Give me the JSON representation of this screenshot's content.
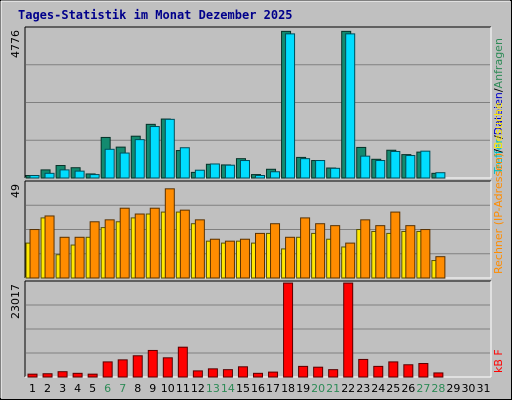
{
  "title": "Tages-Statistik im Monat Dezember 2025",
  "colors": {
    "background": "#C0C0C0",
    "title": "#00008B",
    "weekend_label": "#2E8B57",
    "weekday_label": "#000000",
    "hits": "#00DDFF",
    "files": "#138A6F",
    "sites": "#FF8C00",
    "visits": "#FFE800",
    "kbytes": "#FF0000"
  },
  "chart_data": [
    {
      "type": "bar",
      "panel": "hits-files",
      "ymax_label": "4776",
      "ylim": [
        0,
        4776
      ],
      "right_labels": [
        {
          "text": "Treffer",
          "color": "#00BFBF"
        },
        {
          "text": "/",
          "color": "#000000"
        },
        {
          "text": "Dateien",
          "color": "#0000CC"
        },
        {
          "text": "/",
          "color": "#000000"
        },
        {
          "text": "Anfragen",
          "color": "#2E8B57"
        }
      ],
      "categories": [
        "1",
        "2",
        "3",
        "4",
        "5",
        "6",
        "7",
        "8",
        "9",
        "10",
        "11",
        "12",
        "13",
        "14",
        "15",
        "16",
        "17",
        "18",
        "19",
        "20",
        "21",
        "22",
        "23",
        "24",
        "25",
        "26",
        "27",
        "28",
        "29",
        "30",
        "31"
      ],
      "series": [
        {
          "key": "files",
          "values": [
            80,
            260,
            400,
            330,
            130,
            1300,
            990,
            1340,
            1720,
            1890,
            880,
            180,
            440,
            420,
            620,
            110,
            280,
            4700,
            660,
            560,
            320,
            4700,
            980,
            600,
            890,
            750,
            830,
            150,
            0,
            0,
            0
          ]
        },
        {
          "key": "hits",
          "values": [
            80,
            150,
            260,
            220,
            110,
            920,
            800,
            1230,
            1650,
            1880,
            970,
            250,
            450,
            410,
            560,
            80,
            200,
            4620,
            620,
            560,
            310,
            4620,
            700,
            560,
            850,
            720,
            860,
            170,
            0,
            0,
            0
          ]
        }
      ]
    },
    {
      "type": "bar",
      "panel": "sites-visits",
      "ymax_label": "49",
      "ylim": [
        0,
        49
      ],
      "right_labels": [
        {
          "text": "Rechner (IP-Adressen)",
          "color": "#FF8C00"
        },
        {
          "text": "/",
          "color": "#000000"
        },
        {
          "text": "Besuche",
          "color": "#FFE800"
        }
      ],
      "categories": [
        "1",
        "2",
        "3",
        "4",
        "5",
        "6",
        "7",
        "8",
        "9",
        "10",
        "11",
        "12",
        "13",
        "14",
        "15",
        "16",
        "17",
        "18",
        "19",
        "20",
        "21",
        "22",
        "23",
        "24",
        "25",
        "26",
        "27",
        "28",
        "29",
        "30",
        "31"
      ],
      "series": [
        {
          "key": "visits",
          "values": [
            18,
            31,
            12,
            17,
            21,
            26,
            29,
            31,
            33,
            34,
            34,
            28,
            19,
            18,
            19,
            18,
            23,
            15,
            21,
            23,
            20,
            16,
            25,
            24,
            23,
            24,
            24,
            9,
            0,
            0,
            0
          ]
        },
        {
          "key": "sites",
          "values": [
            25,
            32,
            21,
            21,
            29,
            30,
            36,
            33,
            36,
            46,
            35,
            30,
            20,
            19,
            20,
            23,
            28,
            21,
            31,
            28,
            27,
            18,
            30,
            27,
            34,
            27,
            25,
            11,
            0,
            0,
            0
          ]
        }
      ]
    },
    {
      "type": "bar",
      "panel": "kbytes",
      "ymax_label": "23017",
      "ylim": [
        0,
        23017
      ],
      "right_labels": [
        {
          "text": "kB F",
          "color": "#FF0000"
        }
      ],
      "categories": [
        "1",
        "2",
        "3",
        "4",
        "5",
        "6",
        "7",
        "8",
        "9",
        "10",
        "11",
        "12",
        "13",
        "14",
        "15",
        "16",
        "17",
        "18",
        "19",
        "20",
        "21",
        "22",
        "23",
        "24",
        "25",
        "26",
        "27",
        "28",
        "29",
        "30",
        "31"
      ],
      "series": [
        {
          "key": "kbytes",
          "values": [
            700,
            800,
            1300,
            900,
            700,
            3700,
            4200,
            5200,
            6500,
            4700,
            7300,
            1500,
            2000,
            1800,
            2500,
            900,
            1200,
            23000,
            2600,
            2400,
            1800,
            23000,
            4300,
            2600,
            3700,
            3000,
            3300,
            1000,
            0,
            0,
            0
          ]
        }
      ]
    }
  ],
  "weekend_days": [
    6,
    7,
    13,
    14,
    20,
    21,
    27,
    28
  ]
}
